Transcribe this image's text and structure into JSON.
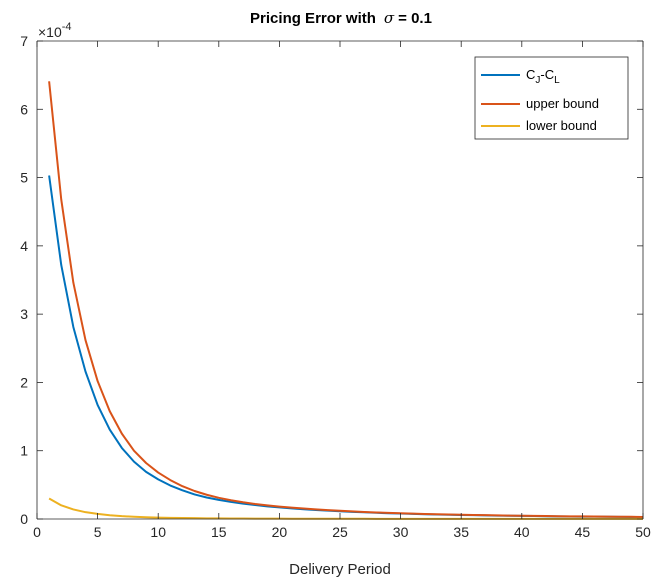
{
  "chart_data": {
    "type": "line",
    "title_prefix": "Pricing Error with",
    "title_symbol": "σ",
    "title_suffix": "= 0.1",
    "xlabel": "Delivery Period",
    "ylabel": "",
    "xlim": [
      0,
      50
    ],
    "ylim": [
      0,
      7
    ],
    "y_exponent_base": "×10",
    "y_exponent_power": "-4",
    "xticks": [
      0,
      5,
      10,
      15,
      20,
      25,
      30,
      35,
      40,
      45,
      50
    ],
    "yticks": [
      0,
      1,
      2,
      3,
      4,
      5,
      6,
      7
    ],
    "grid": false,
    "legend_position": "top-right",
    "x": [
      1,
      2,
      3,
      4,
      5,
      6,
      7,
      8,
      9,
      10,
      11,
      12,
      13,
      14,
      15,
      16,
      17,
      18,
      19,
      20,
      21,
      22,
      23,
      24,
      25,
      26,
      27,
      28,
      29,
      30,
      31,
      32,
      33,
      34,
      35,
      36,
      37,
      38,
      39,
      40,
      41,
      42,
      43,
      44,
      45,
      46,
      47,
      48,
      49,
      50
    ],
    "series": [
      {
        "name_main": "C",
        "name_sub1": "J",
        "name_mid": "-C",
        "name_sub2": "L",
        "color": "#0072BD",
        "values": [
          5.03,
          3.72,
          2.81,
          2.16,
          1.67,
          1.31,
          1.04,
          0.84,
          0.69,
          0.58,
          0.49,
          0.42,
          0.36,
          0.315,
          0.28,
          0.25,
          0.225,
          0.205,
          0.185,
          0.17,
          0.155,
          0.143,
          0.132,
          0.122,
          0.113,
          0.105,
          0.098,
          0.091,
          0.085,
          0.08,
          0.075,
          0.07,
          0.066,
          0.062,
          0.059,
          0.056,
          0.053,
          0.05,
          0.047,
          0.045,
          0.043,
          0.041,
          0.039,
          0.037,
          0.035,
          0.034,
          0.032,
          0.031,
          0.03,
          0.029
        ]
      },
      {
        "name": "upper bound",
        "color": "#D95319",
        "values": [
          6.41,
          4.68,
          3.46,
          2.62,
          2.02,
          1.58,
          1.25,
          1.0,
          0.82,
          0.68,
          0.57,
          0.48,
          0.41,
          0.355,
          0.31,
          0.275,
          0.245,
          0.22,
          0.2,
          0.182,
          0.167,
          0.153,
          0.141,
          0.13,
          0.12,
          0.111,
          0.103,
          0.096,
          0.09,
          0.084,
          0.079,
          0.074,
          0.07,
          0.066,
          0.062,
          0.059,
          0.056,
          0.053,
          0.05,
          0.048,
          0.045,
          0.043,
          0.041,
          0.039,
          0.038,
          0.036,
          0.034,
          0.033,
          0.032,
          0.03
        ]
      },
      {
        "name": "lower bound",
        "color": "#EDB120",
        "values": [
          0.3,
          0.2,
          0.14,
          0.1,
          0.075,
          0.055,
          0.042,
          0.033,
          0.026,
          0.021,
          0.017,
          0.014,
          0.012,
          0.01,
          0.009,
          0.008,
          0.007,
          0.006,
          0.005,
          0.005,
          0.004,
          0.004,
          0.004,
          0.003,
          0.003,
          0.003,
          0.003,
          0.002,
          0.002,
          0.002,
          0.002,
          0.002,
          0.002,
          0.002,
          0.001,
          0.001,
          0.001,
          0.001,
          0.001,
          0.001,
          0.001,
          0.001,
          0.001,
          0.001,
          0.001,
          0.001,
          0.001,
          0.001,
          0.001,
          0.001
        ]
      }
    ]
  }
}
